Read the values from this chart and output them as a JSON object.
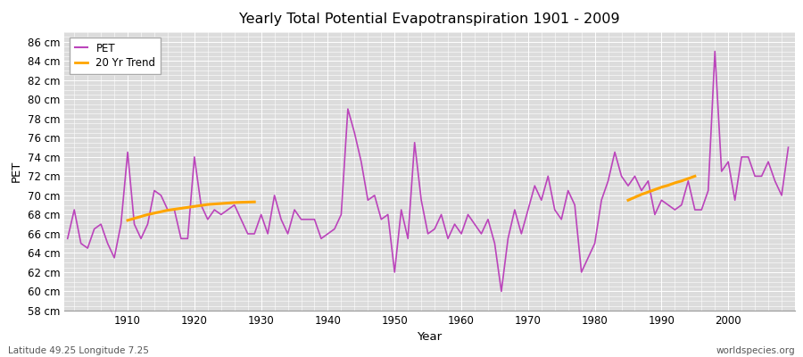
{
  "title": "Yearly Total Potential Evapotranspiration 1901 - 2009",
  "ylabel": "PET",
  "xlabel": "Year",
  "footnote_left": "Latitude 49.25 Longitude 7.25",
  "footnote_right": "worldspecies.org",
  "pet_color": "#BB44BB",
  "trend_color": "#FFA500",
  "bg_color": "#DCDCDC",
  "fig_color": "#FFFFFF",
  "grid_color": "#FFFFFF",
  "ylim": [
    58,
    87
  ],
  "ytick_labels": [
    "58 cm",
    "60 cm",
    "62 cm",
    "64 cm",
    "66 cm",
    "68 cm",
    "70 cm",
    "72 cm",
    "74 cm",
    "76 cm",
    "78 cm",
    "80 cm",
    "82 cm",
    "84 cm",
    "86 cm"
  ],
  "ytick_values": [
    58,
    60,
    62,
    64,
    66,
    68,
    70,
    72,
    74,
    76,
    78,
    80,
    82,
    84,
    86
  ],
  "xlim": [
    1900.5,
    2010
  ],
  "years": [
    1901,
    1902,
    1903,
    1904,
    1905,
    1906,
    1907,
    1908,
    1909,
    1910,
    1911,
    1912,
    1913,
    1914,
    1915,
    1916,
    1917,
    1918,
    1919,
    1920,
    1921,
    1922,
    1923,
    1924,
    1925,
    1926,
    1927,
    1928,
    1929,
    1930,
    1931,
    1932,
    1933,
    1934,
    1935,
    1936,
    1937,
    1938,
    1939,
    1940,
    1941,
    1942,
    1943,
    1944,
    1945,
    1946,
    1947,
    1948,
    1949,
    1950,
    1951,
    1952,
    1953,
    1954,
    1955,
    1956,
    1957,
    1958,
    1959,
    1960,
    1961,
    1962,
    1963,
    1964,
    1965,
    1966,
    1967,
    1968,
    1969,
    1970,
    1971,
    1972,
    1973,
    1974,
    1975,
    1976,
    1977,
    1978,
    1979,
    1980,
    1981,
    1982,
    1983,
    1984,
    1985,
    1986,
    1987,
    1988,
    1989,
    1990,
    1991,
    1992,
    1993,
    1994,
    1995,
    1996,
    1997,
    1998,
    1999,
    2000,
    2001,
    2002,
    2003,
    2004,
    2005,
    2006,
    2007,
    2008,
    2009
  ],
  "pet": [
    65.5,
    68.5,
    65.0,
    64.5,
    66.5,
    67.0,
    65.0,
    63.5,
    67.0,
    74.5,
    67.0,
    65.5,
    67.0,
    70.5,
    70.0,
    68.5,
    68.5,
    65.5,
    65.5,
    74.0,
    69.0,
    67.5,
    68.5,
    68.0,
    68.5,
    69.0,
    67.5,
    66.0,
    66.0,
    68.0,
    66.0,
    70.0,
    67.5,
    66.0,
    68.5,
    67.5,
    67.5,
    67.5,
    65.5,
    66.0,
    66.5,
    68.0,
    79.0,
    76.5,
    73.5,
    69.5,
    70.0,
    67.5,
    68.0,
    62.0,
    68.5,
    65.5,
    75.5,
    69.5,
    66.0,
    66.5,
    68.0,
    65.5,
    67.0,
    66.0,
    68.0,
    67.0,
    66.0,
    67.5,
    65.0,
    60.0,
    65.5,
    68.5,
    66.0,
    68.5,
    71.0,
    69.5,
    72.0,
    68.5,
    67.5,
    70.5,
    69.0,
    62.0,
    63.5,
    65.0,
    69.5,
    71.5,
    74.5,
    72.0,
    71.0,
    72.0,
    70.5,
    71.5,
    68.0,
    69.5,
    69.0,
    68.5,
    69.0,
    71.5,
    68.5,
    68.5,
    70.5,
    85.0,
    72.5,
    73.5,
    69.5,
    74.0,
    74.0,
    72.0,
    72.0,
    73.5,
    71.5,
    70.0,
    75.0
  ],
  "trend1_years": [
    1910,
    1911,
    1912,
    1913,
    1914,
    1915,
    1916,
    1917,
    1918,
    1919,
    1920,
    1921,
    1922,
    1923,
    1924,
    1925,
    1926,
    1927,
    1928,
    1929
  ],
  "trend1_values": [
    67.4,
    67.6,
    67.8,
    68.0,
    68.15,
    68.3,
    68.45,
    68.55,
    68.65,
    68.75,
    68.85,
    68.95,
    69.05,
    69.1,
    69.15,
    69.2,
    69.25,
    69.28,
    69.3,
    69.32
  ],
  "trend2_years": [
    1985,
    1986,
    1987,
    1988,
    1989,
    1990,
    1991,
    1992,
    1993,
    1994,
    1995
  ],
  "trend2_values": [
    69.5,
    69.8,
    70.1,
    70.35,
    70.6,
    70.85,
    71.05,
    71.3,
    71.5,
    71.75,
    72.0
  ],
  "legend_pet_label": "PET",
  "legend_trend_label": "20 Yr Trend"
}
